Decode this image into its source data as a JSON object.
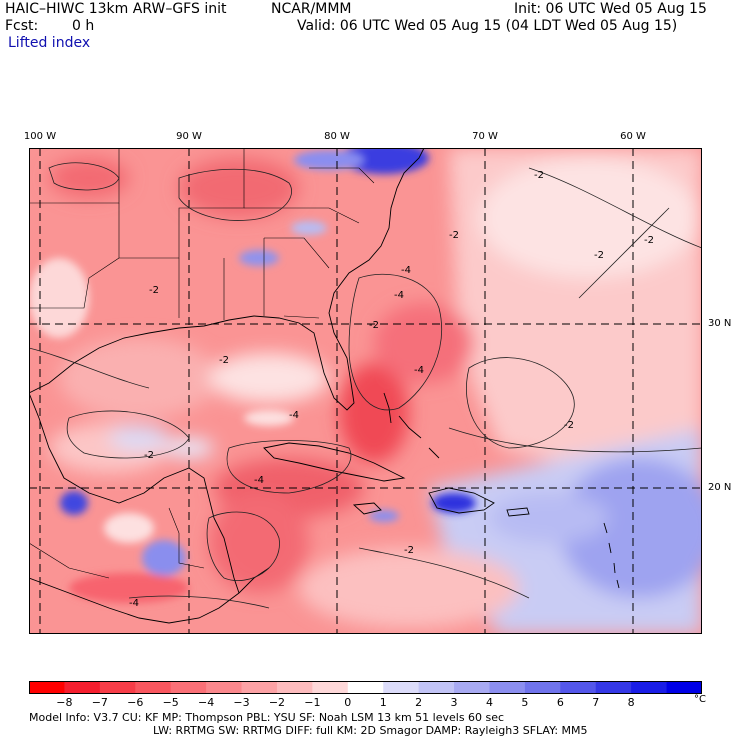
{
  "header": {
    "model_title": "HAIC–HIWC 13km ARW–GFS init",
    "org": "NCAR/MMM",
    "init": "Init: 06 UTC Wed 05 Aug 15",
    "fcst": "Fcst:",
    "fcst_hours": "0 h",
    "valid": "Valid: 06 UTC Wed 05 Aug 15 (04 LDT Wed 05 Aug 15)",
    "field_name": "Lifted index"
  },
  "map": {
    "field": "lifted index",
    "units": "°C",
    "domain": "Gulf of Mexico, Caribbean, western Atlantic",
    "lon_labels": [
      "100 W",
      "90 W",
      "80 W",
      "70 W",
      "60 W"
    ],
    "lat_labels": [
      "30 N",
      "20 N"
    ],
    "contour_labels": [
      "-2",
      "-2",
      "-2",
      "-2",
      "-4",
      "-4",
      "-4",
      "-4",
      "-4",
      "-2",
      "-2",
      "-2",
      "-2",
      "-4",
      "-2",
      "-2"
    ],
    "colors": {
      "strong_negative": "#f0203c",
      "negative": "#fa8a8a",
      "weak_negative": "#fcd0d0",
      "neutral": "#ffffff",
      "positive": "#b6baf2",
      "strong_positive": "#1a1ae0"
    }
  },
  "colorbar": {
    "ticks": [
      "−8",
      "−7",
      "−6",
      "−5",
      "−4",
      "−3",
      "−2",
      "−1",
      "0",
      "1",
      "2",
      "3",
      "4",
      "5",
      "6",
      "7",
      "8"
    ],
    "unit": "°C",
    "colors": [
      "#ff0000",
      "#f51e2e",
      "#f73d48",
      "#f9575f",
      "#fa7077",
      "#fb888d",
      "#fca2a5",
      "#fdbcbe",
      "#fed8d9",
      "#ffffff",
      "#dcdcfa",
      "#c2c4f6",
      "#a8aaf2",
      "#8c8ff0",
      "#7074ec",
      "#5457ea",
      "#3538e6",
      "#1a1de6",
      "#0000e6"
    ]
  },
  "footer": {
    "line1": "Model Info: V3.7      CU: KF       MP: Thompson    PBL: YSU      SF: Noah LSM     13 km    51 levels    60 sec",
    "line2": "LW: RRTMG    SW: RRTMG   DIFF: full    KM: 2D Smagor DAMP: Rayleigh3   SFLAY: MM5"
  }
}
